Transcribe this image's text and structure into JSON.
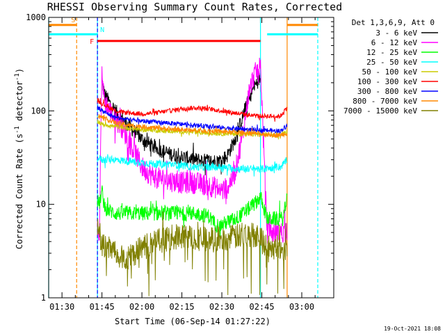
{
  "chart_data": {
    "type": "line",
    "title": "RHESSI Observing Summary Count Rates, Corrected",
    "xlabel": "Start Time (06-Sep-14 01:27:22)",
    "ylabel_main": "Corrected Count Rate (s",
    "ylabel_sup1": "-1",
    "ylabel_mid": " detector",
    "ylabel_sup2": "-1",
    "ylabel_end": ")",
    "yscale": "log",
    "ylim": [
      1,
      1000
    ],
    "xlim_minutes": [
      -5,
      102
    ],
    "x_unit": "minutes after 01:30",
    "x_ticks": [
      {
        "label": "01:30",
        "value": 0
      },
      {
        "label": "01:45",
        "value": 15
      },
      {
        "label": "02:00",
        "value": 30
      },
      {
        "label": "02:15",
        "value": 45
      },
      {
        "label": "02:30",
        "value": 60
      },
      {
        "label": "02:45",
        "value": 75
      },
      {
        "label": "03:00",
        "value": 90
      }
    ],
    "y_ticks": [
      {
        "label": "1",
        "value": 1
      },
      {
        "label": "10",
        "value": 10
      },
      {
        "label": "100",
        "value": 100
      },
      {
        "label": "1000",
        "value": 1000
      }
    ],
    "legend_title": "Det 1,3,6,9, Att 0",
    "series": [
      {
        "name": "3 - 6 keV",
        "color": "#000000",
        "x": [
          15,
          16,
          18,
          20,
          23,
          26,
          30,
          35,
          40,
          45,
          50,
          55,
          58,
          60,
          62,
          65,
          68,
          70,
          72,
          74.5
        ],
        "values": [
          210,
          150,
          120,
          100,
          80,
          65,
          50,
          40,
          35,
          32,
          30,
          29,
          29,
          30,
          33,
          50,
          90,
          130,
          180,
          230
        ]
      },
      {
        "name": "6 - 12 keV",
        "color": "#ff00ff",
        "x": [
          13.3,
          14,
          15,
          15.5,
          16,
          18,
          20,
          22,
          24,
          26,
          28,
          30,
          33,
          36,
          40,
          45,
          50,
          55,
          58,
          60,
          62,
          65,
          68,
          70,
          72,
          74.5,
          77,
          79,
          81,
          83,
          84.5
        ],
        "values": [
          6,
          5,
          300,
          160,
          130,
          100,
          80,
          70,
          55,
          42,
          33,
          25,
          21,
          19,
          18,
          17,
          17,
          16,
          15,
          14,
          15,
          22,
          60,
          150,
          240,
          300,
          5,
          5,
          5,
          5,
          5
        ]
      },
      {
        "name": "12 - 25 keV",
        "color": "#00ff00",
        "x": [
          13.3,
          14,
          15,
          16,
          18,
          20,
          25,
          30,
          35,
          40,
          45,
          50,
          55,
          58,
          60,
          62,
          65,
          68,
          70,
          72,
          74.5,
          77,
          79,
          81,
          83,
          84.5
        ],
        "values": [
          11,
          10,
          14,
          9,
          8.5,
          8,
          8,
          8,
          8,
          8,
          8,
          8,
          7.5,
          6,
          6,
          6.5,
          7,
          8,
          9,
          10,
          12,
          7,
          7,
          7,
          7,
          12
        ]
      },
      {
        "name": "25 - 50 keV",
        "color": "#00ffff",
        "x": [
          13.3,
          15,
          20,
          25,
          30,
          35,
          40,
          45,
          50,
          55,
          60,
          65,
          70,
          74.5,
          77,
          80,
          82,
          84.5
        ],
        "values": [
          32,
          30,
          30,
          29,
          28,
          27,
          27,
          26,
          25,
          25,
          25,
          24,
          24,
          24,
          24,
          25,
          25,
          30
        ]
      },
      {
        "name": "50 - 100 keV",
        "color": "#cccc00",
        "x": [
          13.3,
          15,
          20,
          25,
          30,
          35,
          40,
          45,
          50,
          55,
          60,
          65,
          70,
          74.5,
          77,
          80,
          82,
          84.5
        ],
        "values": [
          78,
          72,
          68,
          65,
          63,
          62,
          61,
          60,
          59,
          58,
          57,
          57,
          56,
          56,
          56,
          55,
          55,
          60
        ]
      },
      {
        "name": "100 - 300 keV",
        "color": "#ff0000",
        "x": [
          13.3,
          15,
          20,
          25,
          30,
          35,
          40,
          45,
          50,
          55,
          60,
          65,
          70,
          74.5,
          77,
          80,
          82,
          84.5
        ],
        "values": [
          130,
          120,
          100,
          95,
          93,
          95,
          100,
          105,
          108,
          105,
          100,
          95,
          90,
          88,
          88,
          87,
          88,
          110
        ]
      },
      {
        "name": "300 - 800 keV",
        "color": "#0000ff",
        "x": [
          13.3,
          15,
          20,
          25,
          30,
          35,
          40,
          45,
          50,
          55,
          60,
          65,
          70,
          74.5,
          77,
          80,
          82,
          84.5
        ],
        "values": [
          110,
          100,
          85,
          80,
          78,
          76,
          74,
          72,
          70,
          68,
          66,
          65,
          63,
          62,
          62,
          61,
          61,
          70
        ]
      },
      {
        "name": "800 - 7000 keV",
        "color": "#ff8800",
        "x": [
          13.3,
          15,
          20,
          25,
          30,
          35,
          40,
          45,
          50,
          55,
          60,
          65,
          70,
          74.5,
          77,
          80,
          82,
          84.5
        ],
        "values": [
          90,
          85,
          75,
          70,
          68,
          66,
          64,
          63,
          62,
          61,
          60,
          59,
          58,
          57,
          56,
          55,
          55,
          58
        ]
      },
      {
        "name": "7000 - 15000 keV",
        "color": "#808000",
        "x": [
          13.3,
          14,
          15,
          17,
          19,
          21,
          23,
          25,
          27,
          29,
          31,
          33,
          35,
          38,
          41,
          44,
          47,
          50,
          53,
          56,
          59,
          62,
          65,
          68,
          71,
          74,
          77,
          80,
          84.5
        ],
        "values": [
          6,
          5,
          3.5,
          3.4,
          3.2,
          2.8,
          2.6,
          2.8,
          3,
          3.3,
          3.5,
          3.8,
          4,
          4.2,
          4.4,
          4.5,
          4.5,
          4.4,
          4.3,
          4.2,
          4.2,
          4.3,
          4.5,
          4.6,
          4.7,
          4.8,
          3.5,
          3.5,
          3.5
        ]
      }
    ],
    "annotations": {
      "attenuator_bars": [
        {
          "label": "S",
          "color": "#ff8800",
          "x_start": -5,
          "x_end": 5.5,
          "y": 830
        },
        {
          "label": "N",
          "color": "#00ffff",
          "x_start": -5,
          "x_end": 13.3,
          "y": 660
        },
        {
          "label": "F",
          "color": "#ff0000",
          "x_start": 13.3,
          "x_end": 74.5,
          "y": 560
        },
        {
          "label": "",
          "color": "#ff8800",
          "x_start": 84.5,
          "x_end": 96,
          "y": 830
        },
        {
          "label": "",
          "color": "#00ffff",
          "x_start": 77,
          "x_end": 96,
          "y": 660
        }
      ],
      "vlines": [
        {
          "x": -5,
          "color": "#00ffff",
          "style": "solid"
        },
        {
          "x": 5.5,
          "color": "#ff8800",
          "style": "dashed"
        },
        {
          "x": 13.3,
          "color": "#00ffff",
          "style": "solid"
        },
        {
          "x": 13.3,
          "color": "#0000ff",
          "style": "dashed"
        },
        {
          "x": 74.5,
          "color": "#00ffff",
          "style": "solid"
        },
        {
          "x": 84.5,
          "color": "#ff8800",
          "style": "solid"
        },
        {
          "x": 96,
          "color": "#00ffff",
          "style": "dashed"
        }
      ]
    },
    "footer_date": "19-Oct-2021 18:08"
  }
}
